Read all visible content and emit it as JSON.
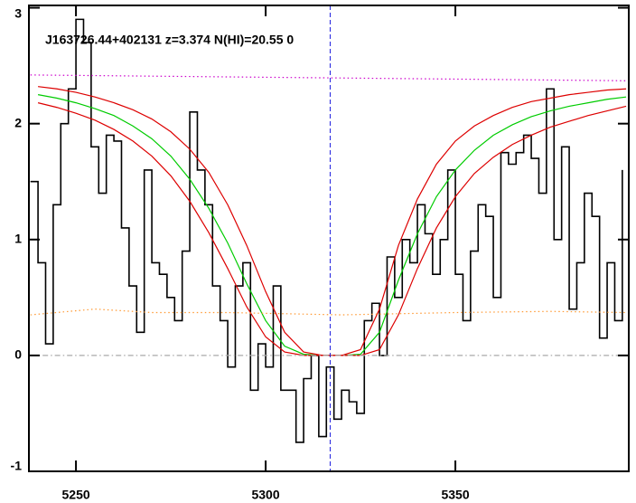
{
  "chart_data": {
    "type": "line",
    "title": "J163726.44+402131 z=3.374 N(HI)=20.55 0",
    "xlim": [
      5237.6,
      5395.7
    ],
    "ylim": [
      -1,
      3.02
    ],
    "xticks": [
      5250,
      5300,
      5350
    ],
    "yticks": [
      -1,
      0,
      1,
      2,
      3
    ],
    "vline": 5317,
    "vline_color": "#2020e0",
    "series": [
      {
        "color": "#000000",
        "style": "steps",
        "x": [
          5238,
          5240,
          5242,
          5244,
          5246,
          5248,
          5250,
          5252,
          5254,
          5256,
          5258,
          5260,
          5262,
          5264,
          5266,
          5268,
          5270,
          5272,
          5274,
          5276,
          5278,
          5280,
          5282,
          5284,
          5286,
          5288,
          5290,
          5292,
          5294,
          5296,
          5298,
          5300,
          5302,
          5304,
          5306,
          5308,
          5310,
          5312,
          5314,
          5316,
          5318,
          5320,
          5322,
          5324,
          5326,
          5328,
          5330,
          5332,
          5334,
          5336,
          5338,
          5340,
          5342,
          5344,
          5346,
          5348,
          5350,
          5352,
          5354,
          5356,
          5358,
          5360,
          5362,
          5364,
          5366,
          5368,
          5370,
          5372,
          5374,
          5376,
          5378,
          5380,
          5382,
          5384,
          5386,
          5388,
          5390,
          5392,
          5394
        ],
        "values": [
          1.5,
          0.8,
          0.1,
          1.3,
          2.0,
          2.3,
          2.9,
          2.7,
          1.8,
          1.4,
          1.9,
          1.85,
          1.1,
          0.6,
          0.2,
          1.6,
          0.8,
          0.7,
          0.5,
          0.3,
          0.9,
          2.1,
          1.6,
          1.3,
          0.6,
          0.3,
          -0.1,
          0.6,
          0.8,
          -0.3,
          0.1,
          -0.1,
          0.6,
          -0.3,
          -0.3,
          -0.75,
          -0.2,
          0.0,
          -0.7,
          -0.1,
          -0.55,
          -0.3,
          -0.4,
          -0.5,
          0.3,
          0.45,
          0.0,
          0.85,
          0.5,
          1.0,
          0.8,
          1.3,
          1.05,
          0.7,
          1.0,
          1.6,
          0.7,
          0.3,
          0.9,
          1.3,
          1.2,
          0.5,
          1.75,
          1.65,
          1.75,
          1.9,
          1.7,
          1.4,
          2.3,
          1.0,
          1.8,
          0.4,
          0.8,
          1.4,
          1.2,
          0.15,
          0.8,
          0.3,
          1.6
        ]
      },
      {
        "color": "#00cc00",
        "style": "solid",
        "x": [
          5240,
          5245,
          5250,
          5255,
          5260,
          5265,
          5270,
          5275,
          5280,
          5285,
          5290,
          5295,
          5300,
          5305,
          5310,
          5315,
          5320,
          5325,
          5330,
          5335,
          5340,
          5345,
          5350,
          5355,
          5360,
          5365,
          5370,
          5375,
          5380,
          5385,
          5390,
          5395
        ],
        "values": [
          2.25,
          2.22,
          2.18,
          2.13,
          2.07,
          1.98,
          1.87,
          1.72,
          1.52,
          1.27,
          0.97,
          0.62,
          0.3,
          0.08,
          0.01,
          0,
          0,
          0.01,
          0.2,
          0.65,
          1.05,
          1.37,
          1.6,
          1.77,
          1.9,
          1.99,
          2.06,
          2.11,
          2.15,
          2.18,
          2.21,
          2.23
        ]
      },
      {
        "color": "#dd0000",
        "style": "solid",
        "x": [
          5240,
          5245,
          5250,
          5255,
          5260,
          5265,
          5270,
          5275,
          5280,
          5285,
          5290,
          5295,
          5300,
          5305,
          5310,
          5315,
          5320,
          5325,
          5330,
          5335,
          5340,
          5345,
          5350,
          5355,
          5360,
          5365,
          5370,
          5375,
          5380,
          5385,
          5390,
          5395
        ],
        "values": [
          2.32,
          2.3,
          2.27,
          2.23,
          2.18,
          2.12,
          2.04,
          1.93,
          1.78,
          1.58,
          1.3,
          0.95,
          0.55,
          0.2,
          0.03,
          0,
          0,
          0.05,
          0.4,
          0.95,
          1.35,
          1.65,
          1.85,
          1.98,
          2.07,
          2.14,
          2.19,
          2.22,
          2.25,
          2.27,
          2.29,
          2.3
        ]
      },
      {
        "color": "#dd0000",
        "style": "solid",
        "x": [
          5240,
          5245,
          5250,
          5255,
          5260,
          5265,
          5270,
          5275,
          5280,
          5285,
          5290,
          5295,
          5300,
          5305,
          5310,
          5315,
          5320,
          5325,
          5330,
          5335,
          5340,
          5345,
          5350,
          5355,
          5360,
          5365,
          5370,
          5375,
          5380,
          5385,
          5390,
          5395
        ],
        "values": [
          2.18,
          2.14,
          2.09,
          2.03,
          1.95,
          1.85,
          1.72,
          1.55,
          1.33,
          1.06,
          0.75,
          0.42,
          0.16,
          0.03,
          0,
          0,
          0,
          0,
          0.05,
          0.35,
          0.75,
          1.1,
          1.37,
          1.57,
          1.71,
          1.82,
          1.9,
          1.97,
          2.02,
          2.07,
          2.11,
          2.15
        ]
      },
      {
        "color": "#cc00cc",
        "style": "dotted",
        "x": [
          5238,
          5395
        ],
        "values": [
          2.42,
          2.37
        ]
      },
      {
        "color": "#ff9933",
        "style": "dotted",
        "x": [
          5238,
          5255,
          5270,
          5290,
          5320,
          5350,
          5375,
          5395
        ],
        "values": [
          0.35,
          0.4,
          0.37,
          0.37,
          0.35,
          0.37,
          0.38,
          0.37
        ]
      },
      {
        "color": "#aaaaaa",
        "style": "dashdot",
        "x": [
          5238,
          5395
        ],
        "values": [
          0,
          0
        ]
      }
    ]
  }
}
